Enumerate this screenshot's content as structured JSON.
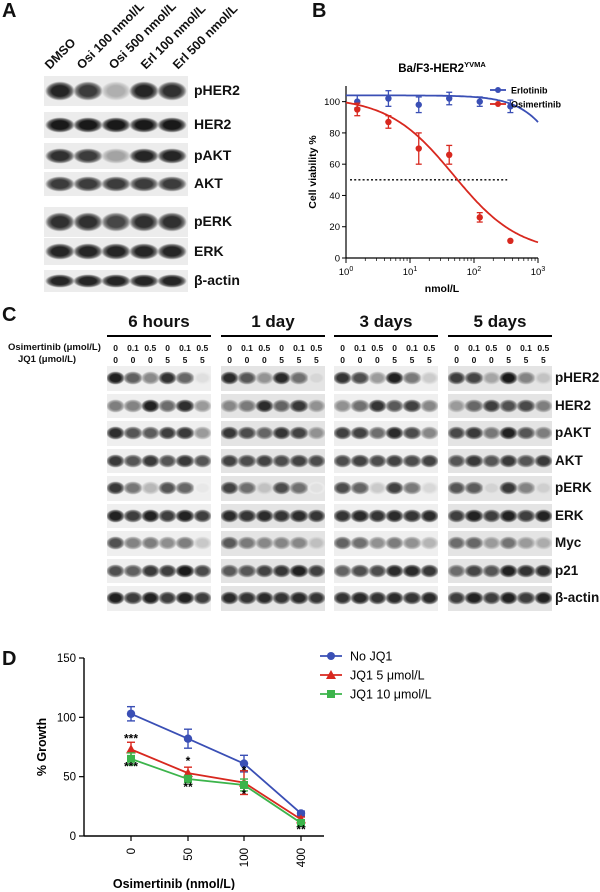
{
  "panelA": {
    "letter": "A",
    "lanes": [
      "DMSO",
      "Osi 100 nmol/L",
      "Osi 500 nmol/L",
      "Erl 100 nmol/L",
      "Erl 500 nmol/L"
    ],
    "blots": [
      {
        "label": "pHER2",
        "intensity": [
          0.95,
          0.85,
          0.35,
          0.95,
          0.9
        ]
      },
      {
        "label": "HER2",
        "intensity": [
          1,
          1,
          1,
          1,
          1
        ]
      },
      {
        "label": "pAKT",
        "intensity": [
          0.9,
          0.85,
          0.4,
          0.95,
          0.95
        ]
      },
      {
        "label": "AKT",
        "intensity": [
          0.85,
          0.85,
          0.85,
          0.85,
          0.85
        ]
      },
      {
        "label": "pERK",
        "intensity": [
          0.9,
          0.9,
          0.8,
          0.9,
          0.9
        ]
      },
      {
        "label": "ERK",
        "intensity": [
          0.95,
          0.95,
          0.95,
          0.95,
          0.95
        ]
      },
      {
        "label": "β-actin",
        "intensity": [
          0.95,
          0.95,
          0.95,
          0.95,
          0.95
        ]
      }
    ]
  },
  "panelB": {
    "letter": "B",
    "title_main": "Ba/F3-HER2",
    "title_sup": "YVMA",
    "ylabel": "Cell viability %",
    "xlabel": "nmol/L",
    "x_ticks": [
      "10",
      "10",
      "10",
      "10"
    ],
    "x_tick_exps": [
      "0",
      "1",
      "2",
      "3"
    ],
    "y_ticks": [
      "0",
      "20",
      "40",
      "60",
      "80",
      "100"
    ],
    "legend": [
      {
        "name": "Erlotinib",
        "color": "#3a4fb5"
      },
      {
        "name": "Osimertinib",
        "color": "#d8281f"
      }
    ]
  },
  "panelC": {
    "letter": "C",
    "groups": [
      "6 hours",
      "1 day",
      "3 days",
      "5 days"
    ],
    "osi_label": "Osimertinib (μmol/L)",
    "jq1_label": "JQ1 (μmol/L)",
    "osi_doses": [
      "0",
      "0.1",
      "0.5",
      "0",
      "0.1",
      "0.5"
    ],
    "jq1_doses": [
      "0",
      "0",
      "0",
      "5",
      "5",
      "5"
    ],
    "rows": [
      "pHER2",
      "HER2",
      "pAKT",
      "AKT",
      "pERK",
      "ERK",
      "Myc",
      "p21",
      "β-actin"
    ]
  },
  "panelD": {
    "letter": "D",
    "ylabel": "% Growth",
    "xlabel": "Osimertinib (nmol/L)",
    "y_ticks": [
      "0",
      "50",
      "100",
      "150"
    ],
    "stars": {
      "x0_top": "***",
      "x0_bot": "***",
      "x50_top": "*",
      "x50_bot": "**",
      "x100_top": "*",
      "x100_bot": "*",
      "x400_bot": "**"
    }
  },
  "chart_data": [
    {
      "type": "scatter",
      "title": "Ba/F3-HER2YVMA",
      "xlabel": "nmol/L",
      "ylabel": "Cell viability %",
      "xscale": "log",
      "xlim": [
        1,
        1000
      ],
      "ylim": [
        0,
        110
      ],
      "reference_line_y": 50,
      "legend_position": "top-right",
      "series": [
        {
          "name": "Erlotinib",
          "color": "#3a4fb5",
          "x": [
            1.5,
            4.6,
            13.7,
            41,
            123,
            370
          ],
          "y": [
            100,
            102,
            98,
            102,
            100,
            97
          ],
          "err": [
            4,
            5,
            5,
            4,
            3,
            4
          ]
        },
        {
          "name": "Osimertinib",
          "color": "#d8281f",
          "x": [
            1.5,
            4.6,
            13.7,
            41,
            123,
            370
          ],
          "y": [
            95,
            87,
            70,
            66,
            26,
            11
          ],
          "err": [
            4,
            4,
            10,
            6,
            3,
            0
          ]
        }
      ]
    },
    {
      "type": "line",
      "xlabel": "Osimertinib (nmol/L)",
      "ylabel": "% Growth",
      "categories": [
        "0",
        "50",
        "100",
        "400"
      ],
      "ylim": [
        0,
        150
      ],
      "legend_position": "top-right",
      "series": [
        {
          "name": "No JQ1",
          "color": "#3a4fb5",
          "marker": "circle",
          "values": [
            103,
            82,
            61,
            19
          ],
          "err": [
            6,
            8,
            7,
            2
          ]
        },
        {
          "name": "JQ1 5 μmol/L",
          "color": "#d8281f",
          "marker": "triangle",
          "values": [
            73,
            53,
            45,
            14
          ],
          "err": [
            6,
            5,
            10,
            2
          ]
        },
        {
          "name": "JQ1 10 μmol/L",
          "color": "#3cb44b",
          "marker": "square",
          "values": [
            65,
            48,
            43,
            11
          ],
          "err": [
            5,
            3,
            5,
            2
          ]
        }
      ]
    }
  ]
}
